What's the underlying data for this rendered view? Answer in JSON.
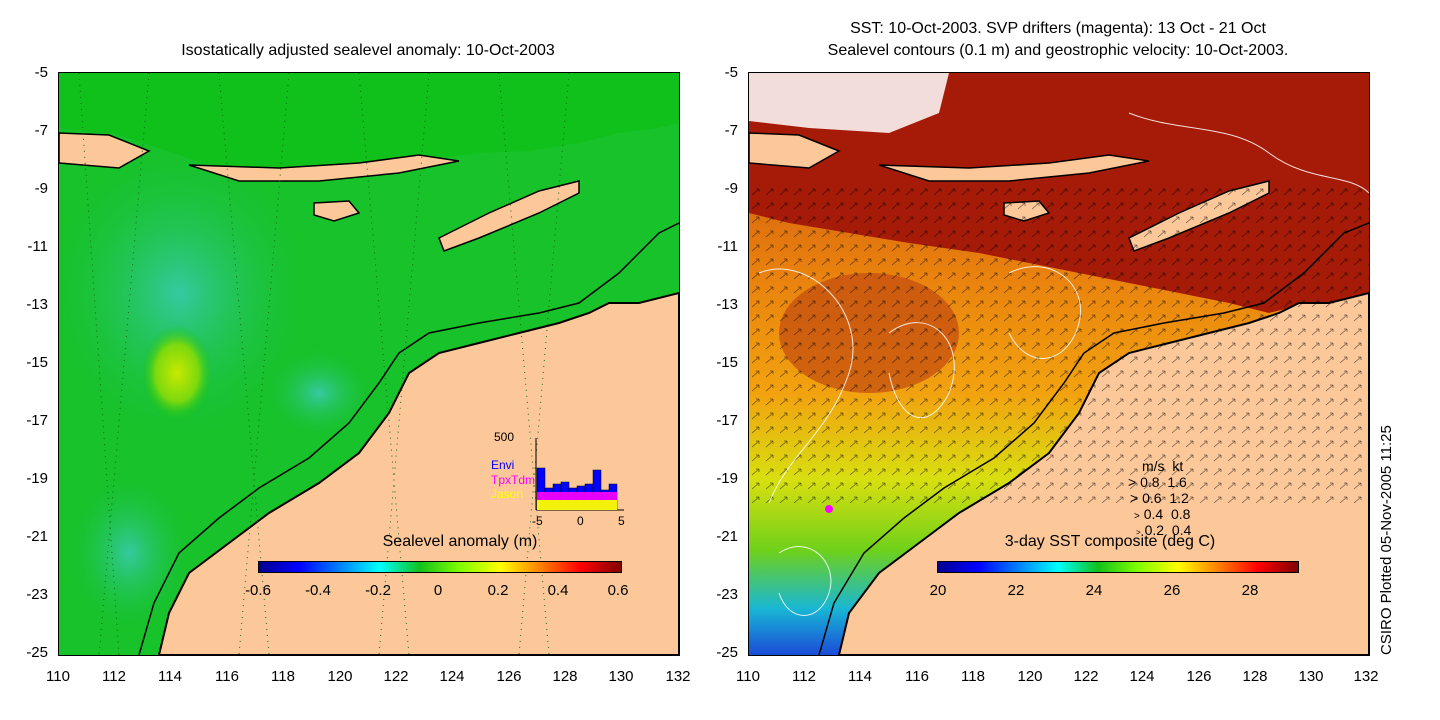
{
  "left_panel": {
    "title": "Isostatically adjusted sealevel anomaly: 10-Oct-2003",
    "colorbar": {
      "label": "Sealevel anomaly (m)",
      "ticks": [
        "-0.6",
        "-0.4",
        "-0.2",
        "0",
        "0.2",
        "0.4",
        "0.6"
      ]
    },
    "histogram": {
      "ymax_label": "500",
      "x_ticks": [
        "-5",
        "0",
        "5"
      ],
      "legend": [
        "Envi",
        "TpxTdm",
        "Jason"
      ],
      "legend_colors": [
        "#0000ff",
        "#ff00ff",
        "#ffff00"
      ]
    }
  },
  "right_panel": {
    "title_line1": "SST: 10-Oct-2003. SVP drifters (magenta): 13 Oct - 21 Oct",
    "title_line2": "Sealevel contours (0.1 m) and geostrophic velocity: 10-Oct-2003.",
    "colorbar": {
      "label": "3-day SST composite (deg C)",
      "ticks": [
        "20",
        "22",
        "24",
        "26",
        "28"
      ]
    },
    "velocity_legend": {
      "header_ms": "m/s",
      "header_kt": "kt",
      "rows": [
        {
          "ms": "0.8",
          "kt": "1.6"
        },
        {
          "ms": "0.6",
          "kt": "1.2"
        },
        {
          "ms": "0.4",
          "kt": "0.8"
        },
        {
          "ms": "0.2",
          "kt": "0.4"
        }
      ]
    }
  },
  "axes": {
    "y_ticks": [
      "-5",
      "-7",
      "-9",
      "-11",
      "-13",
      "-15",
      "-17",
      "-19",
      "-21",
      "-23",
      "-25"
    ],
    "x_ticks": [
      "110",
      "112",
      "114",
      "116",
      "118",
      "120",
      "122",
      "124",
      "126",
      "128",
      "130",
      "132"
    ]
  },
  "credit": "CSIRO Plotted 05-Nov-2005 11:25",
  "colors": {
    "land": "#fcc89a",
    "ocean_green": "#11c11b",
    "sst_red": "#a51b08"
  }
}
